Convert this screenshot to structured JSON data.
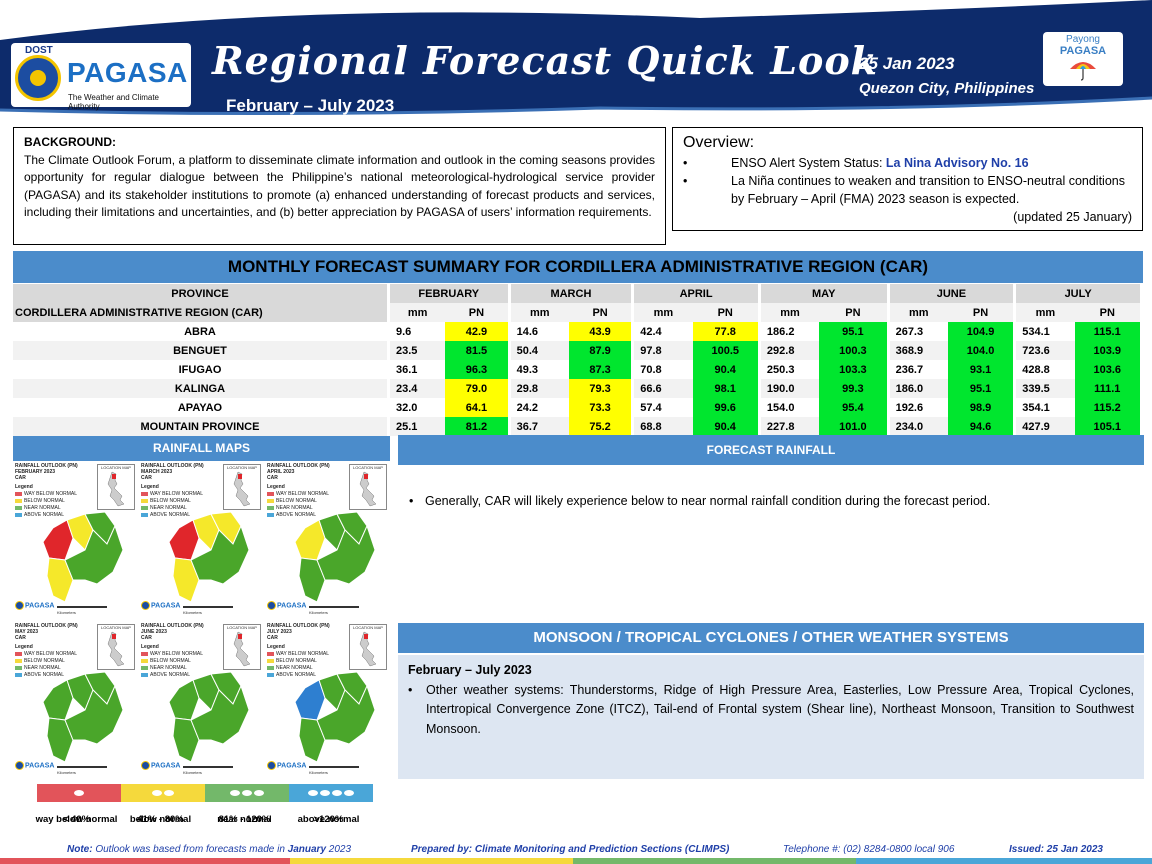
{
  "header": {
    "agency_dost": "DOST",
    "agency_name": "PAGASA",
    "agency_tagline": "The Weather and Climate Authority",
    "title": "Regional Forecast Quick Look",
    "period": "February – July 2023",
    "date": "25 Jan 2023",
    "place": "Quezon City, Philippines",
    "payong_line1": "Payong",
    "payong_line2": "PAGASA"
  },
  "background": {
    "heading": "BACKGROUND:",
    "text": "The Climate Outlook Forum, a platform to disseminate climate information and outlook in the coming seasons provides opportunity for regular dialogue between the Philippine’s national meteorological-hydrological service provider (PAGASA) and its stakeholder institutions to promote (a) enhanced understanding of forecast products and services, including their limitations and uncertainties, and (b) better appreciation by PAGASA of users’ information requirements."
  },
  "overview": {
    "heading": "Overview:",
    "item1_prefix": "ENSO Alert System Status: ",
    "item1_status": "La Nina Advisory No. 16",
    "item2": "La Niña continues to weaken and transition to ENSO-neutral conditions by February – April (FMA) 2023  season is expected.",
    "updated": "(updated 25 January)"
  },
  "summary": {
    "title": "MONTHLY FORECAST SUMMARY FOR CORDILLERA ADMINISTRATIVE REGION (CAR)",
    "province_header": "PROVINCE",
    "region_label": "CORDILLERA ADMINISTRATIVE REGION (CAR)",
    "months": [
      "FEBRUARY",
      "MARCH",
      "APRIL",
      "MAY",
      "JUNE",
      "JULY"
    ],
    "mm_label": "mm",
    "pn_label": "PN",
    "rows": [
      {
        "name": "ABRA",
        "values": [
          [
            "9.6",
            "42.9"
          ],
          [
            "14.6",
            "43.9"
          ],
          [
            "42.4",
            "77.8"
          ],
          [
            "186.2",
            "95.1"
          ],
          [
            "267.3",
            "104.9"
          ],
          [
            "534.1",
            "115.1"
          ]
        ]
      },
      {
        "name": "BENGUET",
        "values": [
          [
            "23.5",
            "81.5"
          ],
          [
            "50.4",
            "87.9"
          ],
          [
            "97.8",
            "100.5"
          ],
          [
            "292.8",
            "100.3"
          ],
          [
            "368.9",
            "104.0"
          ],
          [
            "723.6",
            "103.9"
          ]
        ]
      },
      {
        "name": "IFUGAO",
        "values": [
          [
            "36.1",
            "96.3"
          ],
          [
            "49.3",
            "87.3"
          ],
          [
            "70.8",
            "90.4"
          ],
          [
            "250.3",
            "103.3"
          ],
          [
            "236.7",
            "93.1"
          ],
          [
            "428.8",
            "103.6"
          ]
        ]
      },
      {
        "name": "KALINGA",
        "values": [
          [
            "23.4",
            "79.0"
          ],
          [
            "29.8",
            "79.3"
          ],
          [
            "66.6",
            "98.1"
          ],
          [
            "190.0",
            "99.3"
          ],
          [
            "186.0",
            "95.1"
          ],
          [
            "339.5",
            "111.1"
          ]
        ]
      },
      {
        "name": "APAYAO",
        "values": [
          [
            "32.0",
            "64.1"
          ],
          [
            "24.2",
            "73.3"
          ],
          [
            "57.4",
            "99.6"
          ],
          [
            "154.0",
            "95.4"
          ],
          [
            "192.6",
            "98.9"
          ],
          [
            "354.1",
            "115.2"
          ]
        ]
      },
      {
        "name": "MOUNTAIN PROVINCE",
        "values": [
          [
            "25.1",
            "81.2"
          ],
          [
            "36.7",
            "75.2"
          ],
          [
            "68.8",
            "90.4"
          ],
          [
            "227.8",
            "101.0"
          ],
          [
            "234.0",
            "94.6"
          ],
          [
            "427.9",
            "105.1"
          ]
        ]
      }
    ]
  },
  "rainfall_maps": {
    "title": "RAINFALL MAPS",
    "inset_label": "LOCATION MAP",
    "legend_title": "Legend",
    "legend_items": [
      "WAY BELOW NORMAL",
      "BELOW NORMAL",
      "NEAR NORMAL",
      "ABOVE NORMAL"
    ],
    "map_logo": "PAGASA",
    "scale_label": "Kilometers",
    "maps": [
      {
        "line1": "RAINFALL OUTLOOK (PN)",
        "line2": "FEBRUARY 2023",
        "line3": "CAR"
      },
      {
        "line1": "RAINFALL OUTLOOK (PN)",
        "line2": "MARCH 2023",
        "line3": "CAR"
      },
      {
        "line1": "RAINFALL OUTLOOK (PN)",
        "line2": "APRIL 2023",
        "line3": "CAR"
      },
      {
        "line1": "RAINFALL OUTLOOK (PN)",
        "line2": "MAY 2023",
        "line3": "CAR"
      },
      {
        "line1": "RAINFALL OUTLOOK (PN)",
        "line2": "JUNE 2023",
        "line3": "CAR"
      },
      {
        "line1": "RAINFALL OUTLOOK (PN)",
        "line2": "JULY 2023",
        "line3": "CAR"
      }
    ],
    "scale": [
      {
        "label": "way below normal",
        "range": "< 40%",
        "color": "#e2545a"
      },
      {
        "label": "below normal",
        "range": "41% - 80%",
        "color": "#f5d93c"
      },
      {
        "label": "near normal",
        "range": "81% - 120%",
        "color": "#73b86a"
      },
      {
        "label": "above normal",
        "range": ">120%",
        "color": "#4aa6d8"
      }
    ]
  },
  "forecast_rainfall": {
    "title": "FORECAST RAINFALL",
    "text": "Generally, CAR will likely experience below to near normal rainfall condition during the forecast period."
  },
  "monsoon": {
    "title": "MONSOON / TROPICAL CYCLONES / OTHER WEATHER SYSTEMS",
    "heading": "February – July 2023",
    "text": "Other weather systems: Thunderstorms,  Ridge of High Pressure Area,  Easterlies, Low Pressure Area, Tropical Cyclones, Intertropical Convergence Zone (ITCZ), Tail-end of Frontal system (Shear line), Northeast Monsoon, Transition to Southwest Monsoon."
  },
  "footer": {
    "note_label": "Note:",
    "note_text": "Outlook was based from forecasts made in ",
    "note_month": "January",
    "note_year": " 2023",
    "prepared": "Prepared by: Climate Monitoring and Prediction Sections (CLIMPS)",
    "telephone": "Telephone #: (02) 8284-0800 local 906",
    "issued": "Issued: 25 Jan 2023"
  },
  "colors": {
    "navy": "#0d2b6b",
    "section_blue": "#4b8ccb",
    "yellow_cell": "#ffff00",
    "green_cell": "#00e62e"
  }
}
